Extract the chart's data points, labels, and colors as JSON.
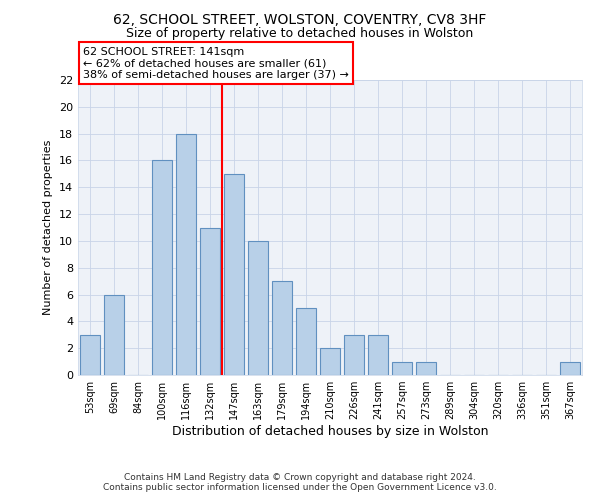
{
  "title1": "62, SCHOOL STREET, WOLSTON, COVENTRY, CV8 3HF",
  "title2": "Size of property relative to detached houses in Wolston",
  "xlabel": "Distribution of detached houses by size in Wolston",
  "ylabel": "Number of detached properties",
  "categories": [
    "53sqm",
    "69sqm",
    "84sqm",
    "100sqm",
    "116sqm",
    "132sqm",
    "147sqm",
    "163sqm",
    "179sqm",
    "194sqm",
    "210sqm",
    "226sqm",
    "241sqm",
    "257sqm",
    "273sqm",
    "289sqm",
    "304sqm",
    "320sqm",
    "336sqm",
    "351sqm",
    "367sqm"
  ],
  "values": [
    3,
    6,
    0,
    16,
    18,
    11,
    15,
    10,
    7,
    5,
    2,
    3,
    3,
    1,
    1,
    0,
    0,
    0,
    0,
    0,
    1
  ],
  "bar_color": "#b8d0e8",
  "bar_edge_color": "#6090c0",
  "vline_index": 6,
  "vline_color": "red",
  "annotation_line1": "62 SCHOOL STREET: 141sqm",
  "annotation_line2": "← 62% of detached houses are smaller (61)",
  "annotation_line3": "38% of semi-detached houses are larger (37) →",
  "annotation_box_color": "white",
  "annotation_box_edge": "red",
  "ylim": [
    0,
    22
  ],
  "yticks": [
    0,
    2,
    4,
    6,
    8,
    10,
    12,
    14,
    16,
    18,
    20,
    22
  ],
  "footer1": "Contains HM Land Registry data © Crown copyright and database right 2024.",
  "footer2": "Contains public sector information licensed under the Open Government Licence v3.0.",
  "bg_color": "#eef2f8",
  "grid_color": "#c8d4e8",
  "title1_fontsize": 10,
  "title2_fontsize": 9
}
